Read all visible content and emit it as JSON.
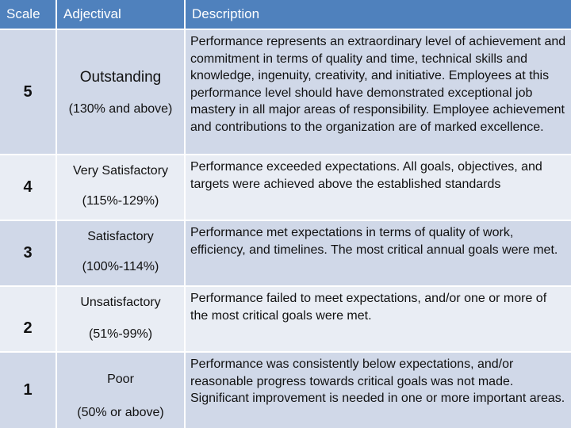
{
  "header": {
    "scale": "Scale",
    "adjectival": "Adjectival",
    "description": "Description"
  },
  "rows": [
    {
      "scale": "5",
      "adjectival": "Outstanding",
      "range": "(130% and above)",
      "description": "Performance represents an extraordinary level of achievement and commitment in terms of quality and time, technical skills and knowledge, ingenuity, creativity, and initiative. Employees at this performance level should have demonstrated exceptional job mastery in all major areas of responsibility. Employee achievement and contributions to the organization are of marked excellence."
    },
    {
      "scale": "4",
      "adjectival": "Very Satisfactory",
      "range": "(115%-129%)",
      "description": "Performance exceeded expectations. All goals, objectives, and targets were achieved above the established standards"
    },
    {
      "scale": "3",
      "adjectival": "Satisfactory",
      "range": "(100%-114%)",
      "description": "Performance met expectations in terms of quality of work, efficiency, and timelines. The most critical annual goals were met."
    },
    {
      "scale": "2",
      "adjectival": "Unsatisfactory",
      "range": "(51%-99%)",
      "description": "Performance failed to meet expectations, and/or one or more of the most critical goals were met."
    },
    {
      "scale": "1",
      "adjectival": "Poor",
      "range": "(50% or above)",
      "description": "Performance was consistently below expectations, and/or reasonable progress towards critical goals was not made. Significant improvement is needed in one or more important areas."
    }
  ]
}
